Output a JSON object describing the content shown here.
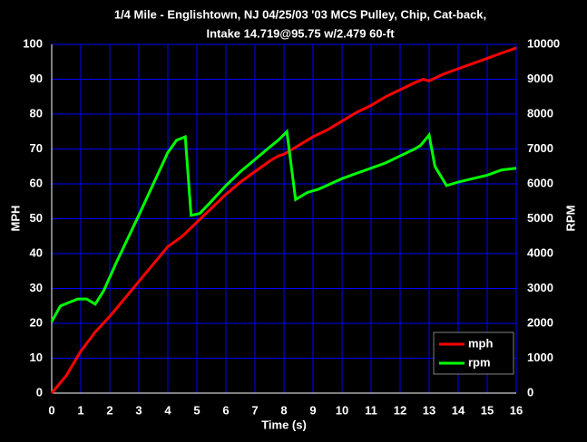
{
  "chart_data": {
    "type": "line",
    "title": [
      "1/4 Mile - Englishtown, NJ 04/25/03  '03 MCS Pulley, Chip, Cat-back,",
      "Intake 14.719@95.75 w/2.479 60-ft"
    ],
    "x_label": "Time (s)",
    "y_label": "MPH",
    "y2_label": "RPM",
    "xlim": [
      0,
      16
    ],
    "xticks": [
      0,
      1,
      2,
      3,
      4,
      5,
      6,
      7,
      8,
      9,
      10,
      11,
      12,
      13,
      14,
      15,
      16
    ],
    "ylim": [
      0,
      100
    ],
    "yticks": [
      0,
      10,
      20,
      30,
      40,
      50,
      60,
      70,
      80,
      90,
      100
    ],
    "y2lim": [
      0,
      10000
    ],
    "y2ticks": [
      0,
      1000,
      2000,
      3000,
      4000,
      5000,
      6000,
      7000,
      8000,
      9000,
      10000
    ],
    "grid": true,
    "grid_color": "#0000ff",
    "legend": "lower right",
    "series": [
      {
        "name": "mph",
        "color": "#ff0000",
        "x": [
          0,
          0.5,
          1,
          1.5,
          2,
          2.5,
          3,
          3.5,
          4,
          4.5,
          5,
          5.5,
          6,
          6.5,
          7,
          7.5,
          7.8,
          8,
          8.5,
          9,
          9.5,
          10,
          10.5,
          11,
          11.5,
          12,
          12.5,
          12.8,
          13,
          13.5,
          14,
          14.5,
          15,
          15.5,
          16
        ],
        "values": [
          0,
          5,
          12,
          17.5,
          22,
          27,
          32,
          37,
          42,
          45,
          49,
          53,
          57,
          60.5,
          63.5,
          66.5,
          68,
          68.5,
          71,
          73.5,
          75.5,
          78,
          80.5,
          82.5,
          85,
          87,
          89,
          90,
          89.5,
          91.5,
          93,
          94.5,
          96,
          97.5,
          99
        ]
      },
      {
        "name": "rpm",
        "color": "#00ff00",
        "axis": "y2",
        "x": [
          0,
          0.3,
          0.6,
          0.9,
          1.2,
          1.5,
          1.8,
          2.2,
          2.6,
          3,
          3.5,
          4,
          4.3,
          4.6,
          4.8,
          5.1,
          5.5,
          6,
          6.5,
          7,
          7.5,
          7.8,
          8.1,
          8.4,
          8.8,
          9.2,
          9.6,
          10,
          10.5,
          11,
          11.5,
          12,
          12.5,
          12.7,
          13,
          13.2,
          13.6,
          14,
          14.5,
          15,
          15.5,
          16
        ],
        "values": [
          2050,
          2500,
          2600,
          2700,
          2700,
          2550,
          2950,
          3700,
          4400,
          5100,
          6000,
          6900,
          7250,
          7350,
          5100,
          5150,
          5500,
          5950,
          6350,
          6700,
          7050,
          7250,
          7500,
          5550,
          5750,
          5850,
          6000,
          6150,
          6300,
          6450,
          6600,
          6800,
          7000,
          7100,
          7400,
          6500,
          5950,
          6050,
          6150,
          6250,
          6400,
          6450
        ]
      }
    ]
  }
}
